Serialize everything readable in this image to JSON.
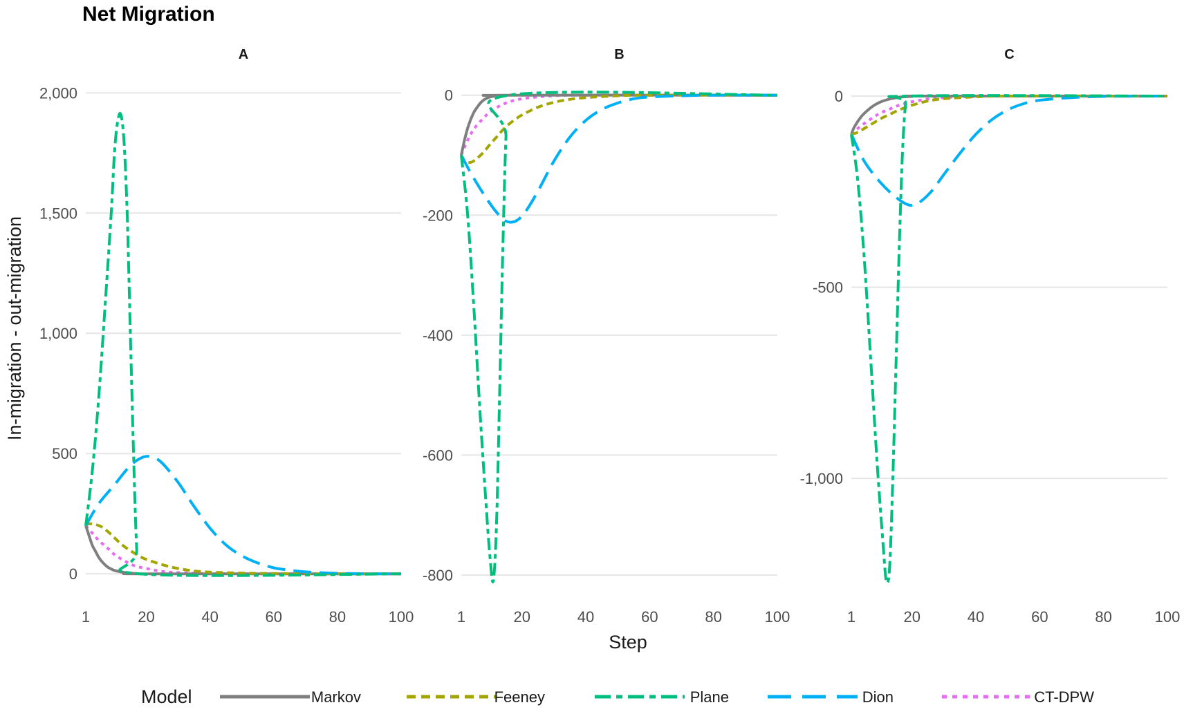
{
  "title": "Net Migration",
  "xlabel": "Step",
  "ylabel": "In-migration - out-migration",
  "legend": {
    "title": "Model",
    "placement": "bottom",
    "items": [
      {
        "name": "Markov",
        "color": "#7f7f7f",
        "dash": "solid"
      },
      {
        "name": "Feeney",
        "color": "#a3a500",
        "dash": "short-dash"
      },
      {
        "name": "Plane",
        "color": "#00bf7d",
        "dash": "long-short-dash"
      },
      {
        "name": "Dion",
        "color": "#00b0f6",
        "dash": "long-dash"
      },
      {
        "name": "CT-DPW",
        "color": "#e76bf3",
        "dash": "dotted"
      }
    ]
  },
  "chart_data": [
    {
      "type": "line",
      "title": "A",
      "x_ticks": [
        "1",
        "20",
        "40",
        "60",
        "80",
        "100"
      ],
      "xlim": [
        1,
        100
      ],
      "y_ticks": [
        "0",
        "500",
        "1,000",
        "1,500",
        "2,000"
      ],
      "y_tick_values": [
        0,
        500,
        1000,
        1500,
        2000
      ],
      "ylim": [
        -80,
        2090
      ],
      "grid": true,
      "series": [
        {
          "name": "Markov",
          "points": [
            [
              1,
              200
            ],
            [
              2,
              160
            ],
            [
              3,
              120
            ],
            [
              4,
              95
            ],
            [
              5,
              70
            ],
            [
              6,
              52
            ],
            [
              7,
              38
            ],
            [
              8,
              27
            ],
            [
              9,
              20
            ],
            [
              10,
              14
            ],
            [
              12,
              8
            ],
            [
              14,
              4
            ],
            [
              16,
              2
            ],
            [
              20,
              0
            ],
            [
              100,
              0
            ]
          ]
        },
        {
          "name": "Feeney",
          "points": [
            [
              1,
              200
            ],
            [
              2,
              208
            ],
            [
              4,
              205
            ],
            [
              6,
              195
            ],
            [
              8,
              175
            ],
            [
              10,
              150
            ],
            [
              12,
              125
            ],
            [
              14,
              105
            ],
            [
              16,
              88
            ],
            [
              18,
              72
            ],
            [
              20,
              60
            ],
            [
              25,
              38
            ],
            [
              30,
              22
            ],
            [
              35,
              12
            ],
            [
              40,
              7
            ],
            [
              50,
              3
            ],
            [
              60,
              1
            ],
            [
              70,
              0
            ],
            [
              100,
              0
            ]
          ]
        },
        {
          "name": "Plane",
          "points": [
            [
              1,
              200
            ],
            [
              3,
              420
            ],
            [
              5,
              720
            ],
            [
              7,
              1100
            ],
            [
              9,
              1500
            ],
            [
              10,
              1750
            ],
            [
              11,
              1880
            ],
            [
              12,
              1910
            ],
            [
              13,
              1800
            ],
            [
              14,
              1500
            ],
            [
              15,
              1000
            ],
            [
              16,
              500
            ],
            [
              17,
              100
            ],
            [
              18,
              0
            ],
            [
              100,
              0
            ]
          ]
        },
        {
          "name": "Dion",
          "points": [
            [
              1,
              200
            ],
            [
              5,
              290
            ],
            [
              10,
              370
            ],
            [
              15,
              450
            ],
            [
              19,
              485
            ],
            [
              22,
              485
            ],
            [
              25,
              460
            ],
            [
              30,
              380
            ],
            [
              35,
              280
            ],
            [
              40,
              190
            ],
            [
              45,
              120
            ],
            [
              50,
              75
            ],
            [
              55,
              45
            ],
            [
              60,
              25
            ],
            [
              65,
              15
            ],
            [
              70,
              8
            ],
            [
              80,
              2
            ],
            [
              90,
              0
            ],
            [
              100,
              0
            ]
          ]
        },
        {
          "name": "CT-DPW",
          "points": [
            [
              1,
              200
            ],
            [
              3,
              170
            ],
            [
              5,
              140
            ],
            [
              8,
              105
            ],
            [
              10,
              80
            ],
            [
              13,
              55
            ],
            [
              16,
              35
            ],
            [
              20,
              22
            ],
            [
              25,
              10
            ],
            [
              30,
              5
            ],
            [
              40,
              1
            ],
            [
              50,
              0
            ],
            [
              100,
              0
            ]
          ]
        }
      ]
    },
    {
      "type": "line",
      "title": "B",
      "x_ticks": [
        "1",
        "20",
        "40",
        "60",
        "80",
        "100"
      ],
      "xlim": [
        1,
        100
      ],
      "y_ticks": [
        "0",
        "-200",
        "-400",
        "-600",
        "-800"
      ],
      "y_tick_values": [
        0,
        -200,
        -400,
        -600,
        -800
      ],
      "ylim": [
        -830,
        40
      ],
      "grid": true,
      "series": [
        {
          "name": "Markov",
          "points": [
            [
              1,
              -100
            ],
            [
              2,
              -75
            ],
            [
              3,
              -55
            ],
            [
              4,
              -40
            ],
            [
              5,
              -28
            ],
            [
              6,
              -20
            ],
            [
              7,
              -13
            ],
            [
              8,
              -8
            ],
            [
              9,
              -5
            ],
            [
              10,
              -3
            ],
            [
              12,
              -1
            ],
            [
              15,
              0
            ],
            [
              100,
              0
            ]
          ]
        },
        {
          "name": "Feeney",
          "points": [
            [
              1,
              -100
            ],
            [
              2,
              -110
            ],
            [
              4,
              -112
            ],
            [
              6,
              -105
            ],
            [
              8,
              -95
            ],
            [
              10,
              -82
            ],
            [
              12,
              -70
            ],
            [
              14,
              -58
            ],
            [
              16,
              -48
            ],
            [
              18,
              -40
            ],
            [
              20,
              -33
            ],
            [
              25,
              -20
            ],
            [
              30,
              -12
            ],
            [
              35,
              -7
            ],
            [
              40,
              -4
            ],
            [
              50,
              -1
            ],
            [
              60,
              0
            ],
            [
              100,
              0
            ]
          ]
        },
        {
          "name": "Plane",
          "points": [
            [
              1,
              -100
            ],
            [
              3,
              -200
            ],
            [
              5,
              -360
            ],
            [
              7,
              -540
            ],
            [
              9,
              -700
            ],
            [
              10,
              -770
            ],
            [
              11,
              -810
            ],
            [
              12,
              -720
            ],
            [
              13,
              -500
            ],
            [
              14,
              -260
            ],
            [
              15,
              -70
            ],
            [
              16,
              0
            ],
            [
              100,
              0
            ]
          ]
        },
        {
          "name": "Dion",
          "points": [
            [
              1,
              -100
            ],
            [
              4,
              -130
            ],
            [
              8,
              -165
            ],
            [
              12,
              -195
            ],
            [
              15,
              -210
            ],
            [
              18,
              -210
            ],
            [
              21,
              -195
            ],
            [
              25,
              -160
            ],
            [
              30,
              -110
            ],
            [
              35,
              -70
            ],
            [
              40,
              -42
            ],
            [
              45,
              -24
            ],
            [
              50,
              -13
            ],
            [
              55,
              -6
            ],
            [
              60,
              -3
            ],
            [
              70,
              -1
            ],
            [
              80,
              0
            ],
            [
              100,
              0
            ]
          ]
        },
        {
          "name": "CT-DPW",
          "points": [
            [
              1,
              -100
            ],
            [
              3,
              -75
            ],
            [
              5,
              -56
            ],
            [
              8,
              -38
            ],
            [
              10,
              -28
            ],
            [
              13,
              -18
            ],
            [
              16,
              -11
            ],
            [
              20,
              -6
            ],
            [
              25,
              -3
            ],
            [
              30,
              -1
            ],
            [
              40,
              0
            ],
            [
              100,
              0
            ]
          ]
        }
      ]
    },
    {
      "type": "line",
      "title": "C",
      "x_ticks": [
        "1",
        "20",
        "40",
        "60",
        "80",
        "100"
      ],
      "xlim": [
        1,
        100
      ],
      "y_ticks": [
        "0",
        "-500",
        "-1,000"
      ],
      "y_tick_values": [
        0,
        -500,
        -1000
      ],
      "ylim": [
        -1300,
        65
      ],
      "grid": true,
      "series": [
        {
          "name": "Markov",
          "points": [
            [
              1,
              -100
            ],
            [
              2,
              -80
            ],
            [
              4,
              -55
            ],
            [
              6,
              -38
            ],
            [
              8,
              -25
            ],
            [
              10,
              -16
            ],
            [
              12,
              -10
            ],
            [
              14,
              -6
            ],
            [
              16,
              -3
            ],
            [
              20,
              -1
            ],
            [
              25,
              0
            ],
            [
              100,
              0
            ]
          ]
        },
        {
          "name": "Feeney",
          "points": [
            [
              1,
              -100
            ],
            [
              3,
              -95
            ],
            [
              5,
              -85
            ],
            [
              8,
              -70
            ],
            [
              10,
              -60
            ],
            [
              13,
              -48
            ],
            [
              16,
              -36
            ],
            [
              20,
              -24
            ],
            [
              25,
              -13
            ],
            [
              30,
              -7
            ],
            [
              40,
              -2
            ],
            [
              50,
              0
            ],
            [
              100,
              0
            ]
          ]
        },
        {
          "name": "Plane",
          "points": [
            [
              1,
              -100
            ],
            [
              3,
              -220
            ],
            [
              5,
              -420
            ],
            [
              7,
              -680
            ],
            [
              9,
              -950
            ],
            [
              11,
              -1180
            ],
            [
              12,
              -1270
            ],
            [
              13,
              -1230
            ],
            [
              14,
              -1000
            ],
            [
              15,
              -700
            ],
            [
              16,
              -400
            ],
            [
              17,
              -150
            ],
            [
              18,
              -20
            ],
            [
              19,
              0
            ],
            [
              100,
              0
            ]
          ]
        },
        {
          "name": "Dion",
          "points": [
            [
              1,
              -100
            ],
            [
              5,
              -170
            ],
            [
              10,
              -225
            ],
            [
              15,
              -265
            ],
            [
              19,
              -285
            ],
            [
              22,
              -280
            ],
            [
              26,
              -250
            ],
            [
              30,
              -205
            ],
            [
              35,
              -150
            ],
            [
              40,
              -100
            ],
            [
              45,
              -62
            ],
            [
              50,
              -36
            ],
            [
              55,
              -20
            ],
            [
              60,
              -11
            ],
            [
              70,
              -4
            ],
            [
              80,
              -1
            ],
            [
              100,
              0
            ]
          ]
        },
        {
          "name": "CT-DPW",
          "points": [
            [
              1,
              -100
            ],
            [
              3,
              -85
            ],
            [
              5,
              -72
            ],
            [
              8,
              -55
            ],
            [
              10,
              -45
            ],
            [
              13,
              -34
            ],
            [
              16,
              -24
            ],
            [
              20,
              -15
            ],
            [
              25,
              -8
            ],
            [
              30,
              -4
            ],
            [
              40,
              -1
            ],
            [
              50,
              0
            ],
            [
              100,
              0
            ]
          ]
        }
      ]
    }
  ]
}
